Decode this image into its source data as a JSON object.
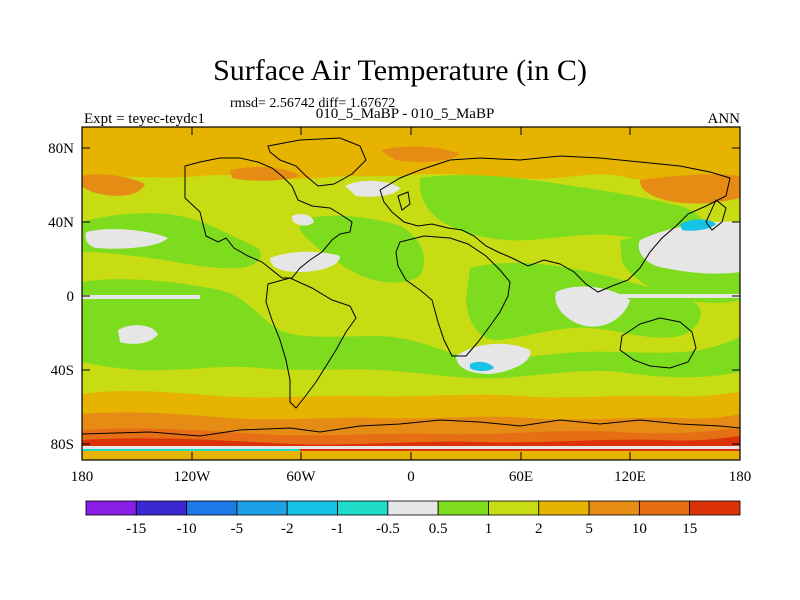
{
  "title": "Surface Air Temperature (in C)",
  "stats": "rmsd= 2.56742  diff= 1.67672",
  "subtitle": "010_5_MaBP - 010_5_MaBP",
  "experiment": "Expt = teyec-teydc1",
  "season": "ANN",
  "latitude_labels": [
    "80N",
    "40N",
    "0",
    "40S",
    "80S"
  ],
  "longitude_labels": [
    "180",
    "120W",
    "60W",
    "0",
    "60E",
    "120E",
    "180"
  ],
  "colorbar": {
    "bins": [
      {
        "color": "#8a1ee6"
      },
      {
        "color": "#3c28d2"
      },
      {
        "color": "#1e78e6"
      },
      {
        "color": "#1ea0e6"
      },
      {
        "color": "#14c3e6"
      },
      {
        "color": "#1edcc8"
      },
      {
        "color": "#e6e6e6"
      },
      {
        "color": "#7ddc1e"
      },
      {
        "color": "#c8dc14"
      },
      {
        "color": "#e6b400"
      },
      {
        "color": "#e68c14"
      },
      {
        "color": "#e66e14"
      },
      {
        "color": "#dc320a"
      }
    ],
    "tick_labels": [
      "-15",
      "-10",
      "-5",
      "-2",
      "-1",
      "-0.5",
      "0.5",
      "1",
      "2",
      "5",
      "10",
      "15"
    ]
  },
  "colors": {
    "green": "#7ddc1e",
    "yellow_green": "#c8dc14",
    "gold": "#e6b400",
    "orange": "#e68c14",
    "dark_orange": "#e66e14",
    "red": "#dc320a",
    "gray": "#e6e6e6",
    "cyan": "#14c3e6",
    "teal": "#1edcc8"
  }
}
